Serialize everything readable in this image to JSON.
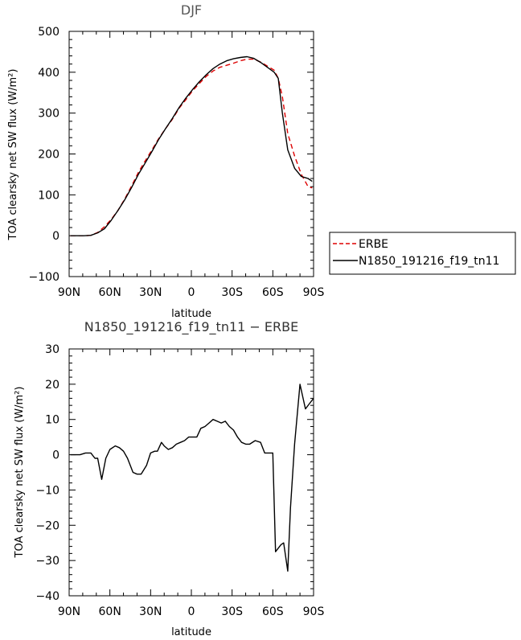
{
  "chart_data": [
    {
      "type": "line",
      "title": "DJF",
      "xlabel": "latitude",
      "ylabel": "TOA clearsky net SW flux (W/m²)",
      "ylim": [
        -100,
        500
      ],
      "xlim": [
        90,
        -90
      ],
      "x_ticks": [
        90,
        60,
        30,
        0,
        -30,
        -60,
        -90
      ],
      "x_tick_labels": [
        "90N",
        "60N",
        "30N",
        "0",
        "30S",
        "60S",
        "90S"
      ],
      "y_ticks": [
        -100,
        0,
        100,
        200,
        300,
        400,
        500
      ],
      "y_tick_labels": [
        "−100",
        "0",
        "100",
        "200",
        "300",
        "400",
        "500"
      ],
      "legend_position": "right",
      "series": [
        {
          "name": "ERBE",
          "color": "#dd0000",
          "dash": "dashed",
          "x": [
            89,
            84,
            79,
            74,
            69,
            64,
            59,
            54,
            49,
            44,
            39,
            34,
            29,
            24,
            19,
            14,
            9,
            4,
            -1,
            -6,
            -11,
            -16,
            -21,
            -26,
            -31,
            -36,
            -41,
            -46,
            -51,
            -56,
            -61,
            -64,
            -67,
            -71,
            -76,
            -81,
            -86,
            -89
          ],
          "y": [
            0,
            0,
            0,
            1,
            8,
            22,
            40,
            62,
            90,
            122,
            155,
            183,
            210,
            238,
            262,
            285,
            312,
            333,
            355,
            373,
            390,
            403,
            412,
            417,
            422,
            428,
            432,
            432,
            425,
            415,
            405,
            385,
            340,
            250,
            195,
            150,
            120,
            117
          ]
        },
        {
          "name": "N1850_191216_f19_tn11",
          "color": "#000000",
          "dash": "solid",
          "x": [
            89,
            84,
            79,
            74,
            69,
            64,
            59,
            54,
            49,
            44,
            39,
            34,
            29,
            24,
            19,
            14,
            9,
            4,
            -1,
            -6,
            -11,
            -16,
            -21,
            -26,
            -31,
            -36,
            -41,
            -46,
            -51,
            -56,
            -61,
            -64,
            -67,
            -71,
            -76,
            -81,
            -86,
            -89
          ],
          "y": [
            0,
            0,
            0,
            1,
            7,
            17,
            38,
            62,
            88,
            118,
            150,
            178,
            206,
            236,
            262,
            287,
            314,
            337,
            358,
            377,
            394,
            409,
            420,
            428,
            433,
            436,
            438,
            434,
            424,
            412,
            400,
            385,
            300,
            210,
            165,
            145,
            140,
            133
          ]
        }
      ]
    },
    {
      "type": "line",
      "title": "N1850_191216_f19_tn11 − ERBE",
      "xlabel": "latitude",
      "ylabel": "TOA clearsky net SW flux (W/m²)",
      "ylim": [
        -40,
        30
      ],
      "xlim": [
        90,
        -90
      ],
      "x_ticks": [
        90,
        60,
        30,
        0,
        -30,
        -60,
        -90
      ],
      "x_tick_labels": [
        "90N",
        "60N",
        "30N",
        "0",
        "30S",
        "60S",
        "90S"
      ],
      "y_ticks": [
        -40,
        -30,
        -20,
        -10,
        0,
        10,
        20,
        30
      ],
      "y_tick_labels": [
        "−40",
        "−30",
        "−20",
        "−10",
        "0",
        "10",
        "20",
        "30"
      ],
      "series": [
        {
          "name": "",
          "color": "#000000",
          "dash": "solid",
          "x": [
            89,
            86,
            82,
            78,
            74,
            71,
            69,
            66,
            63,
            60,
            56,
            53,
            50,
            47,
            43,
            40,
            37,
            33,
            30,
            27,
            25,
            22,
            20,
            17,
            14,
            11,
            8,
            5,
            2,
            -1,
            -4,
            -7,
            -10,
            -13,
            -16,
            -19,
            -22,
            -25,
            -28,
            -31,
            -34,
            -37,
            -40,
            -43,
            -47,
            -51,
            -54,
            -57,
            -60,
            -62,
            -64,
            -66,
            -68,
            -71,
            -73,
            -76,
            -80,
            -84,
            -87,
            -90
          ],
          "y": [
            0,
            0,
            0,
            0.5,
            0.5,
            -1,
            -1,
            -7,
            -1,
            1.5,
            2.5,
            2,
            1,
            -1,
            -5,
            -5.5,
            -5.5,
            -3,
            0.5,
            1,
            1,
            3.5,
            2.5,
            1.5,
            2,
            3,
            3.5,
            4,
            5,
            5,
            5,
            7.5,
            8,
            9,
            10,
            9.5,
            9,
            9.5,
            8,
            7,
            5,
            3.5,
            3,
            3,
            4,
            3.5,
            0.5,
            0.5,
            0.5,
            -27.5,
            -26.5,
            -25.5,
            -25,
            -33,
            -15,
            3,
            20,
            13,
            14.5,
            16
          ]
        }
      ]
    }
  ]
}
